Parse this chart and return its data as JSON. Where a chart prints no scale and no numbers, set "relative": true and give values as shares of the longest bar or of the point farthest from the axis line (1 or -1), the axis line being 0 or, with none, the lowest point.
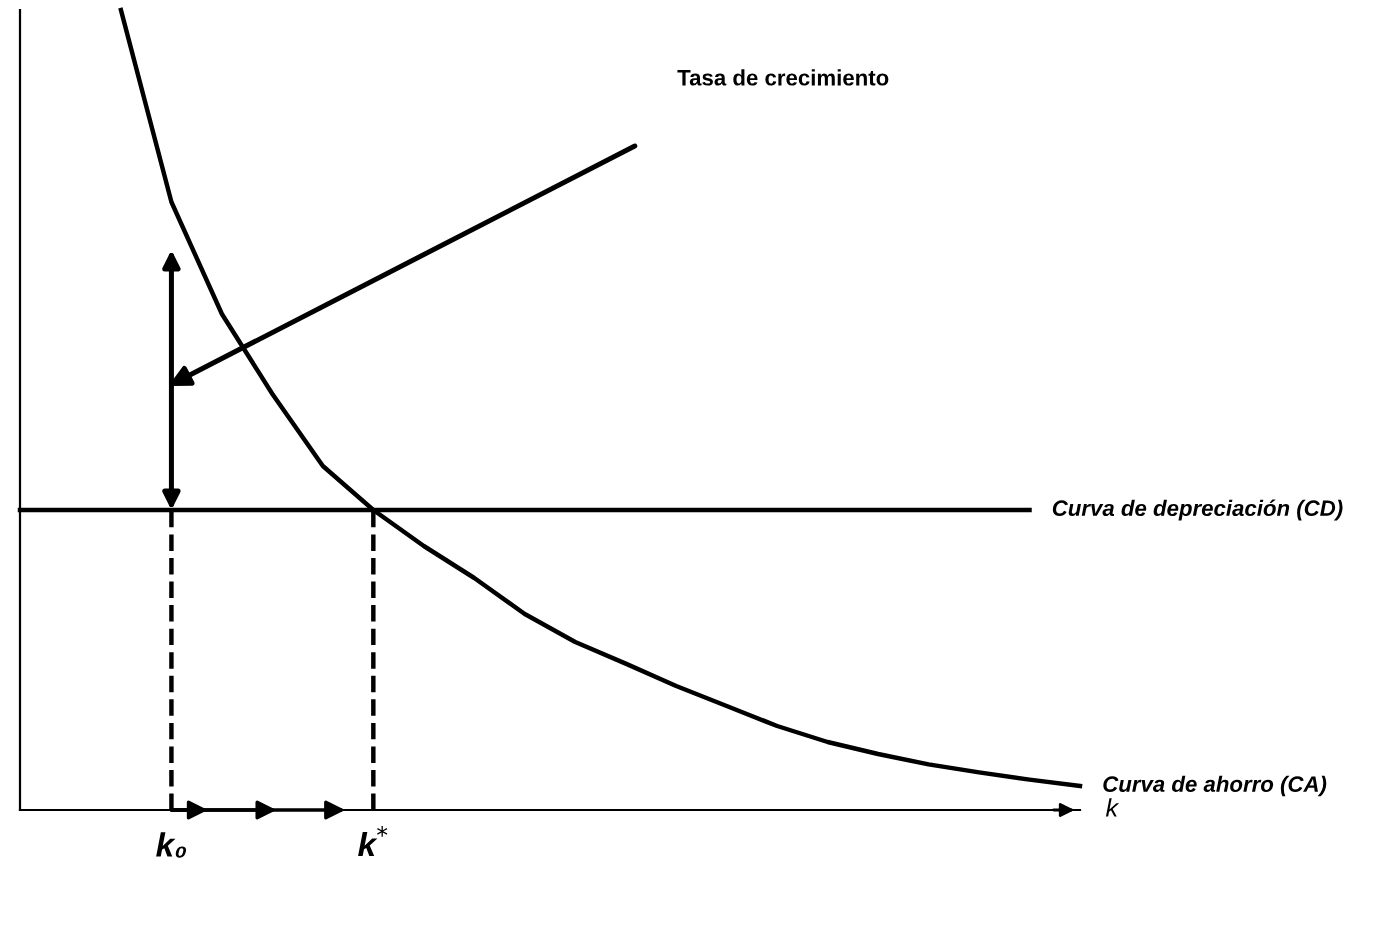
{
  "chart_data": {
    "type": "line",
    "relative": true,
    "xlabel": "k",
    "categories": [
      null,
      null,
      null,
      "k₀",
      null,
      null,
      null,
      "k$^{*}$",
      null,
      null,
      null,
      null,
      null,
      null,
      null,
      null,
      null,
      null,
      null,
      null,
      null,
      null
    ],
    "series": [
      {
        "name": "Curva de ahorro (CA)",
        "color": "#000000",
        "values": [
          null,
          null,
          1.0,
          0.76,
          0.62,
          0.52,
          0.43,
          0.375,
          0.33,
          0.29,
          0.245,
          0.21,
          0.183,
          0.155,
          0.13,
          0.105,
          0.085,
          0.07,
          0.057,
          0.047,
          0.038,
          0.03
        ]
      },
      {
        "name": "Curva de depreciación (CD)",
        "color": "#000000",
        "values": [
          0.375,
          0.375,
          0.375,
          0.375,
          0.375,
          0.375,
          0.375,
          0.375,
          0.375,
          0.375,
          0.375,
          0.375,
          0.375,
          0.375,
          0.375,
          0.375,
          0.375,
          0.375,
          0.375,
          0.375,
          0.375,
          null
        ]
      },
      {
        "color": "#000000",
        "line_style": "dashed",
        "x": [
          "k₀",
          "k₀"
        ],
        "values": [
          0,
          0.375
        ]
      },
      {
        "color": "#000000",
        "line_style": "dashed",
        "x": [
          "k$^{*}$",
          "k$^{*}$"
        ],
        "values": [
          0,
          0.375
        ]
      }
    ],
    "annotations": [
      "Tasa de crecimiento"
    ],
    "grid": false,
    "legend": false,
    "marker": "none"
  }
}
